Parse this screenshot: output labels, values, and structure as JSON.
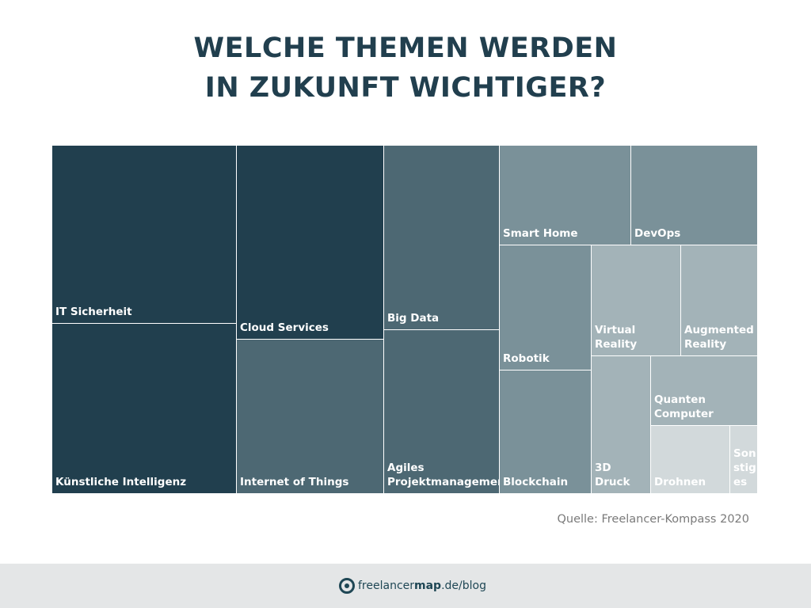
{
  "title_lines": [
    "WELCHE THEMEN WERDEN",
    "IN ZUKUNFT WICHTIGER?"
  ],
  "source": "Quelle: Freelancer-Kompass 2020",
  "footer": {
    "brand_regular": "freelancer",
    "brand_bold": "map",
    "brand_suffix": ".de/blog",
    "logo_icon": "freelancermap-logo-icon"
  },
  "colors": {
    "level1": "#213f4e",
    "level2": "#4d6873",
    "level3": "#7a9199",
    "level4": "#a3b3b8",
    "level5": "#d2d9db"
  },
  "chart_data": {
    "type": "treemap",
    "title": "WELCHE THEMEN WERDEN IN ZUKUNFT WICHTIGER?",
    "items": [
      {
        "label": "IT Sicherheit",
        "value": 16.6,
        "color_level": 1
      },
      {
        "label": "Künstliche Intelligenz",
        "value": 16.5,
        "color_level": 1
      },
      {
        "label": "Cloud Services",
        "value": 10.0,
        "color_level": 1
      },
      {
        "label": "Internet of Things",
        "value": 8.9,
        "color_level": 2
      },
      {
        "label": "Big Data",
        "value": 7.1,
        "color_level": 2
      },
      {
        "label": "Agiles\nProjektmanagement",
        "value": 6.5,
        "color_level": 2
      },
      {
        "label": "Smart Home",
        "value": 4.7,
        "color_level": 3
      },
      {
        "label": "DevOps",
        "value": 4.3,
        "color_level": 3
      },
      {
        "label": "Robotik",
        "value": 4.3,
        "color_level": 3
      },
      {
        "label": "Blockchain",
        "value": 4.3,
        "color_level": 3
      },
      {
        "label": "Virtual Reality",
        "value": 3.6,
        "color_level": 4
      },
      {
        "label": "Augmented\nReality",
        "value": 3.5,
        "color_level": 4
      },
      {
        "label": "3D Druck",
        "value": 3.1,
        "color_level": 4
      },
      {
        "label": "Quanten Computer",
        "value": 2.7,
        "color_level": 4
      },
      {
        "label": "Drohnen",
        "value": 2.1,
        "color_level": 5
      },
      {
        "label": "Son\nstig\nes",
        "value": 0.8,
        "color_level": 5
      }
    ]
  }
}
